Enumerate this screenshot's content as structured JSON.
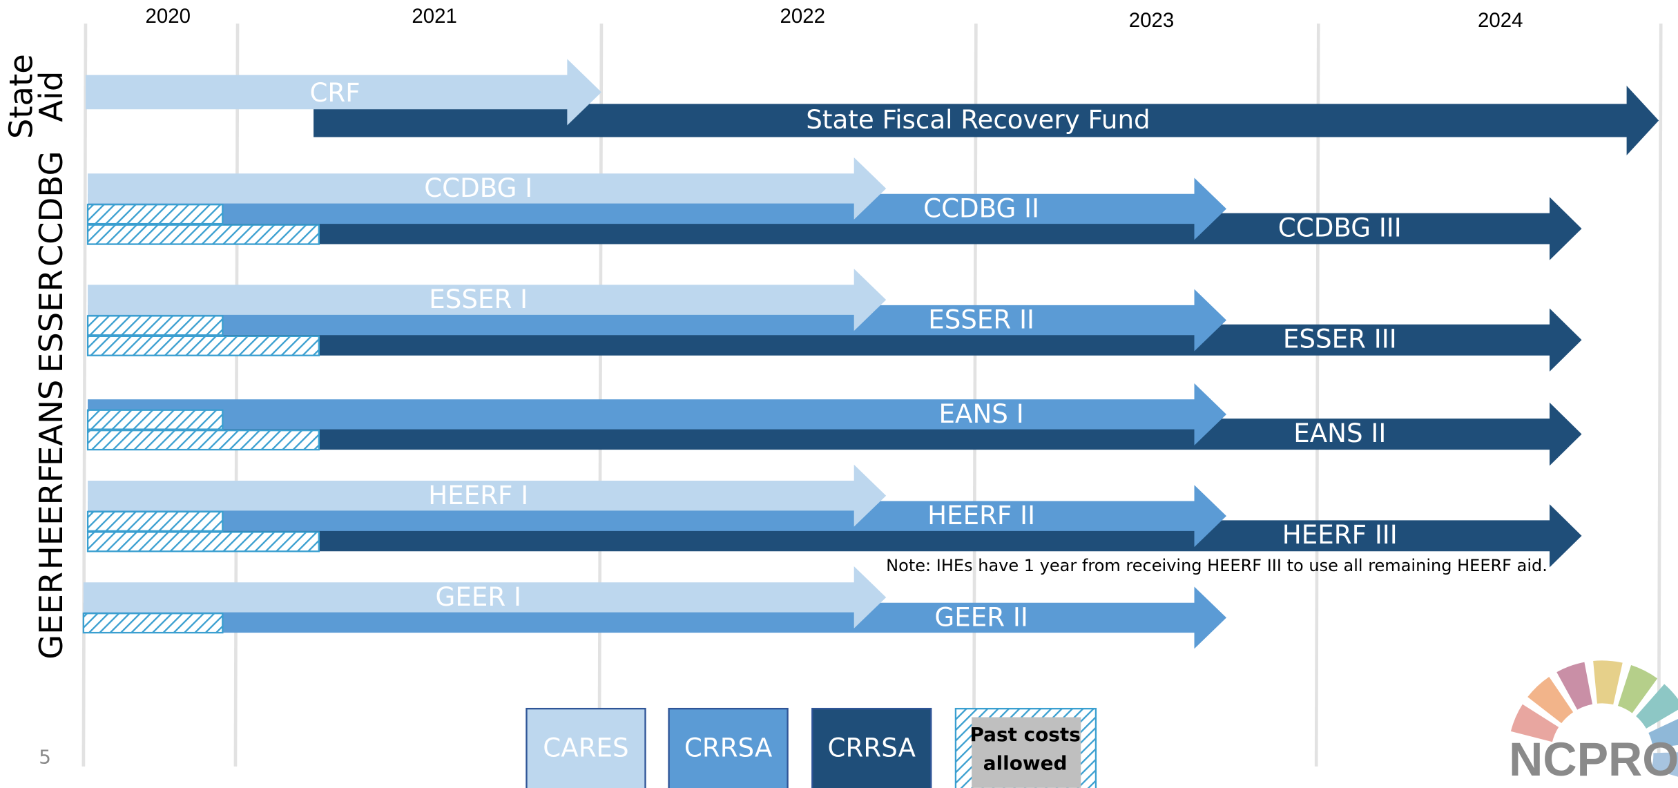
{
  "years": [
    "2020",
    "2021",
    "2022",
    "2023",
    "2024"
  ],
  "rows": [
    {
      "label": [
        "State",
        "Aid"
      ],
      "arrows": [
        "CRF",
        "State Fiscal Recovery Fund"
      ]
    },
    {
      "label": [
        "CCDBG"
      ],
      "arrows": [
        "CCDBG I",
        "CCDBG II",
        "CCDBG III"
      ]
    },
    {
      "label": [
        "ESSER"
      ],
      "arrows": [
        "ESSER I",
        "ESSER II",
        "ESSER III"
      ]
    },
    {
      "label": [
        "EANS"
      ],
      "arrows": [
        "EANS I",
        "EANS II"
      ]
    },
    {
      "label": [
        "HEERF"
      ],
      "arrows": [
        "HEERF I",
        "HEERF II",
        "HEERF III"
      ]
    },
    {
      "label": [
        "GEER"
      ],
      "arrows": [
        "GEER I",
        "GEER II"
      ]
    }
  ],
  "note": "Note: IHEs have 1 year from receiving HEERF III to use all remaining HEERF aid.",
  "legend": [
    [
      "CARES"
    ],
    [
      "CRRSA"
    ],
    [
      "CRRSA"
    ],
    [
      "Past costs",
      "allowed"
    ]
  ],
  "page_number": "5",
  "logo": "NCPRO"
}
